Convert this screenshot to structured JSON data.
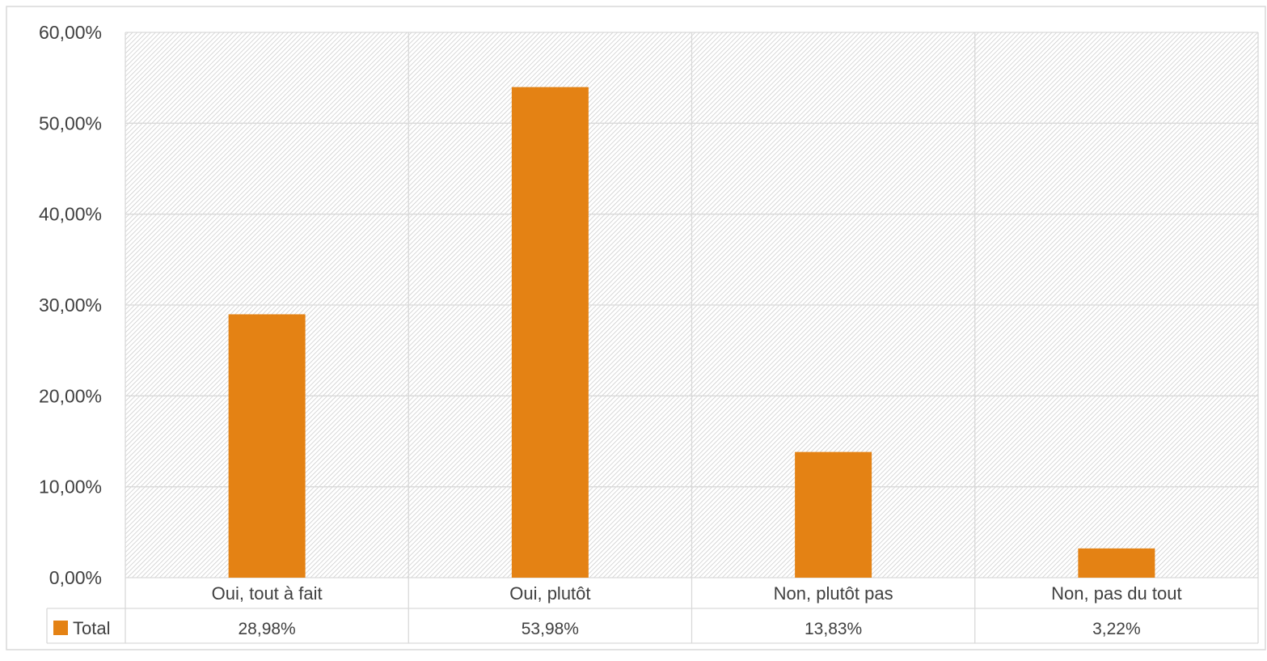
{
  "colors": {
    "bar": "#e48214",
    "grid": "#d9d9d9",
    "hatch": "#bdbdbd",
    "border": "#d9d9d9",
    "text": "#404040"
  },
  "chart_data": {
    "type": "bar",
    "title": "",
    "xlabel": "",
    "ylabel": "",
    "categories": [
      "Oui, tout à fait",
      "Oui, plutôt",
      "Non, plutôt pas",
      "Non, pas du tout"
    ],
    "series": [
      {
        "name": "Total",
        "values": [
          28.98,
          53.98,
          13.83,
          3.22
        ],
        "value_labels": [
          "28,98%",
          "53,98%",
          "13,83%",
          "3,22%"
        ]
      }
    ],
    "ylim": [
      0,
      60
    ],
    "y_ticks": [
      0,
      10,
      20,
      30,
      40,
      50,
      60
    ],
    "y_tick_labels": [
      "0,00%",
      "10,00%",
      "20,00%",
      "30,00%",
      "40,00%",
      "50,00%",
      "60,00%"
    ],
    "grid": true,
    "legend": "data-table-left",
    "data_table": true
  }
}
